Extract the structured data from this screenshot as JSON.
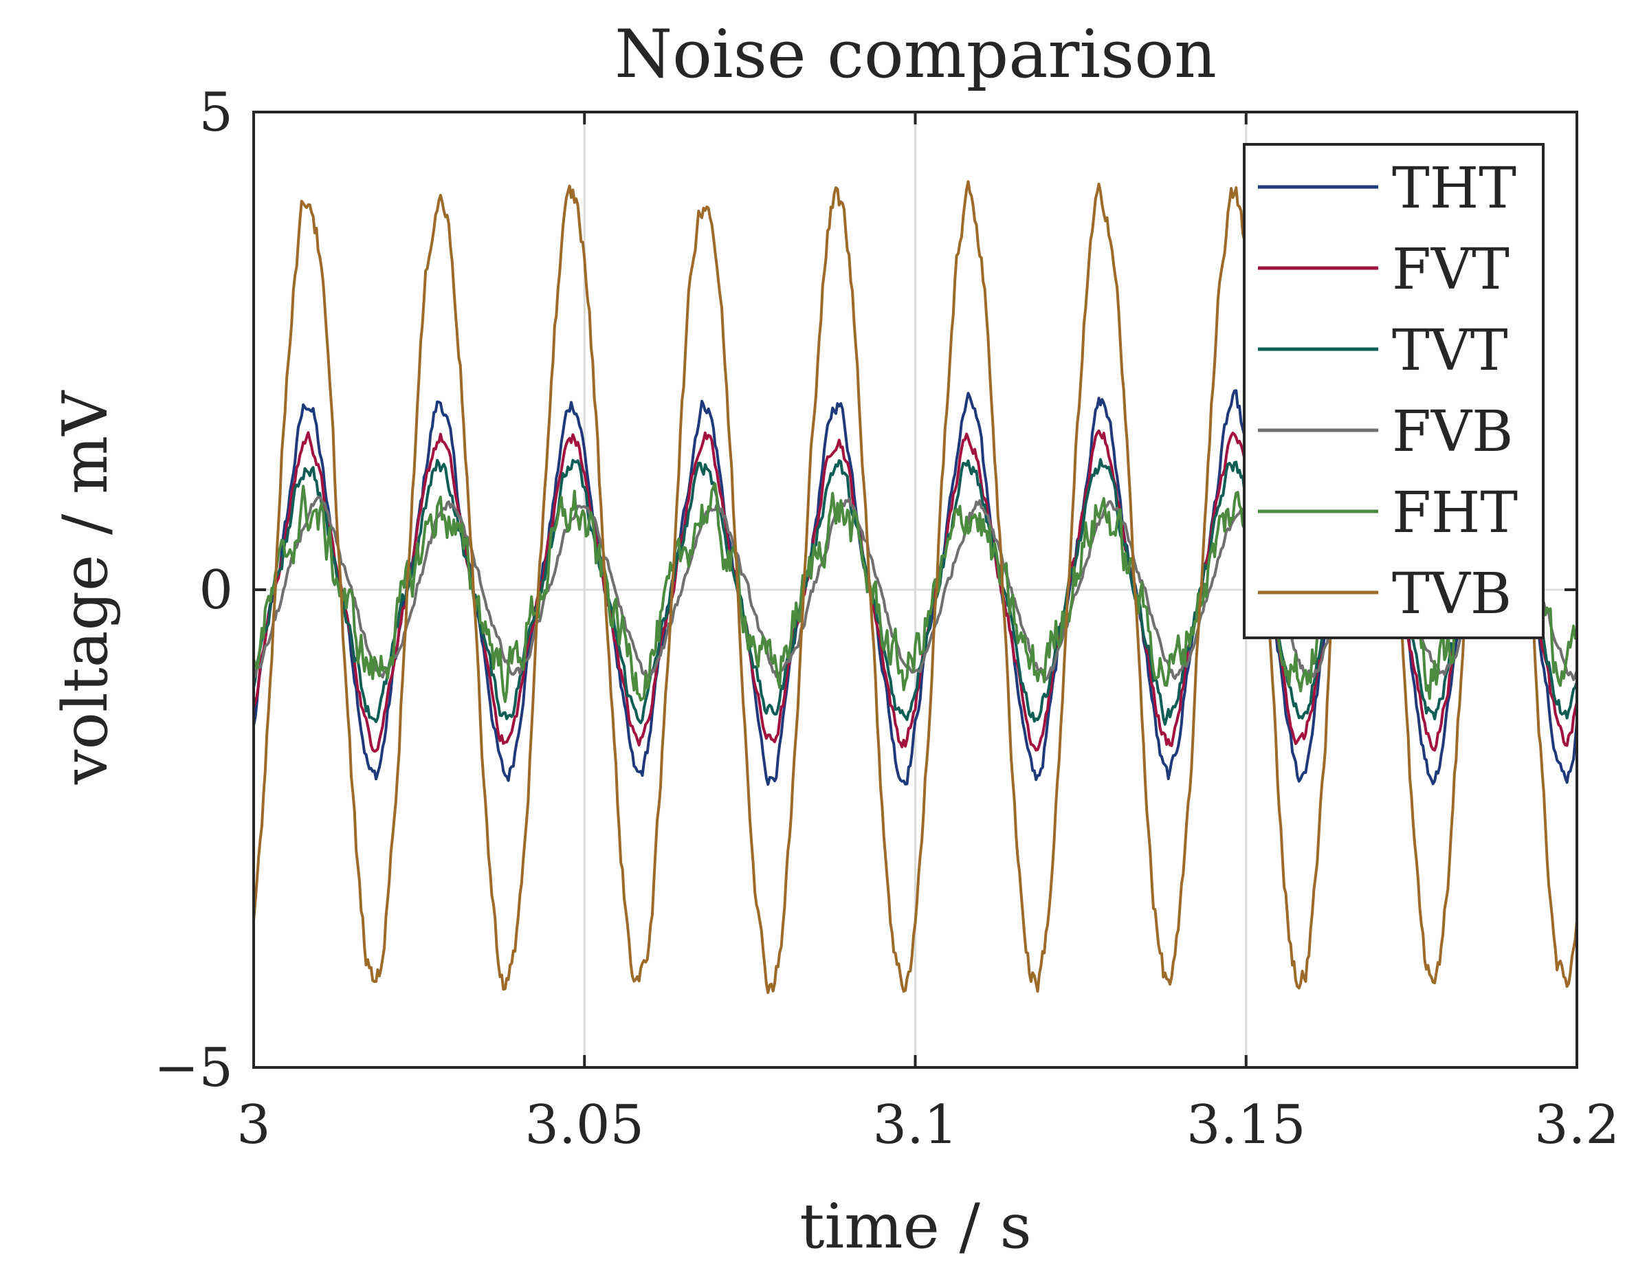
{
  "chart_data": {
    "type": "line",
    "title": "Noise comparison",
    "xlabel": "time / s",
    "ylabel": "voltage / mV",
    "xlim": [
      3,
      3.2
    ],
    "ylim": [
      -5,
      5
    ],
    "xticks": [
      3,
      3.05,
      3.1,
      3.15,
      3.2
    ],
    "xtick_labels": [
      "3",
      "3.05",
      "3.1",
      "3.15",
      "3.2"
    ],
    "yticks": [
      -5,
      0,
      5
    ],
    "ytick_labels": [
      "−5",
      "0",
      "5"
    ],
    "grid": true,
    "legend_position": "top-right",
    "signal": {
      "description_units": "mV",
      "frequency_hz": 50,
      "x_start": 3.0,
      "x_end": 3.2,
      "samples": 800
    },
    "series": [
      {
        "name": "THT",
        "color": "#1f3a7a",
        "amplitude": 1.75,
        "phase": 1.0,
        "second_harmonic": 0.12,
        "jitter": 0.08
      },
      {
        "name": "FVT",
        "color": "#a3123e",
        "amplitude": 1.45,
        "phase": 1.0,
        "second_harmonic": 0.1,
        "jitter": 0.07
      },
      {
        "name": "TVT",
        "color": "#0e5e55",
        "amplitude": 1.2,
        "phase": 1.0,
        "second_harmonic": 0.09,
        "jitter": 0.08
      },
      {
        "name": "FVB",
        "color": "#707070",
        "amplitude": 0.85,
        "phase": 1.45,
        "second_harmonic": 0.05,
        "jitter": 0.05
      },
      {
        "name": "FHT",
        "color": "#4b8a3f",
        "amplitude": 0.8,
        "phase": 1.05,
        "second_harmonic": 0.06,
        "jitter": 0.22
      },
      {
        "name": "TVB",
        "color": "#9c6b2a",
        "amplitude": 4.1,
        "phase": 1.0,
        "second_harmonic": 0.0,
        "jitter": 0.12
      }
    ]
  }
}
